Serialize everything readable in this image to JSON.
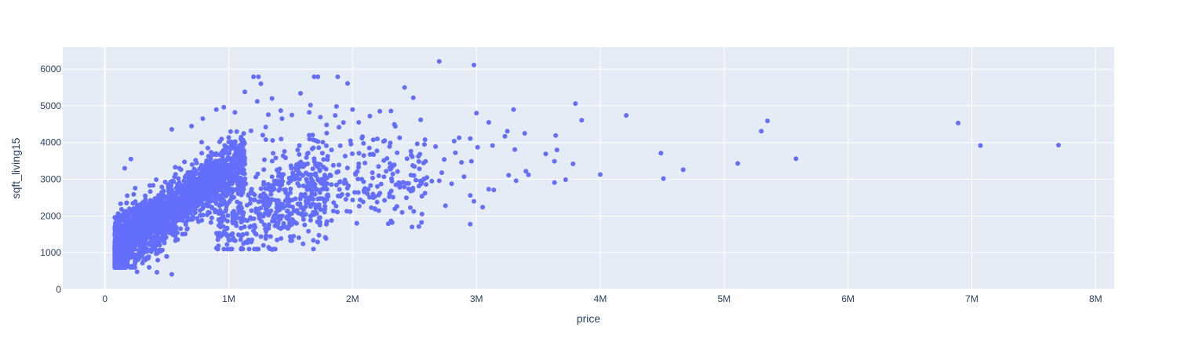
{
  "chart_data": {
    "type": "scatter",
    "title": "",
    "xlabel": "price",
    "ylabel": "sqft_living15",
    "xlim": [
      -340000,
      8150000
    ],
    "ylim": [
      0,
      6600
    ],
    "x_ticks": [
      0,
      1000000,
      2000000,
      3000000,
      4000000,
      5000000,
      6000000,
      7000000,
      8000000
    ],
    "x_tick_labels": [
      "0",
      "1M",
      "2M",
      "3M",
      "4M",
      "5M",
      "6M",
      "7M",
      "8M"
    ],
    "y_ticks": [
      0,
      1000,
      2000,
      3000,
      4000,
      5000,
      6000
    ],
    "y_tick_labels": [
      "0",
      "1000",
      "2000",
      "3000",
      "4000",
      "5000",
      "6000"
    ],
    "grid": true,
    "legend": "none",
    "colors": {
      "marker": "#636efa",
      "plot_bg": "#e5ecf6",
      "grid": "#ffffff",
      "text": "#2a3f5f"
    },
    "series": [
      {
        "points": [
          [
            2700000,
            6210
          ],
          [
            2980000,
            6110
          ],
          [
            1200000,
            5790
          ],
          [
            1240000,
            5790
          ],
          [
            1690000,
            5790
          ],
          [
            1720000,
            5790
          ],
          [
            1880000,
            5790
          ],
          [
            1960000,
            5610
          ],
          [
            1260000,
            5600
          ],
          [
            2420000,
            5500
          ],
          [
            1130000,
            5380
          ],
          [
            1580000,
            5340
          ],
          [
            2490000,
            5220
          ],
          [
            1350000,
            5200
          ],
          [
            1230000,
            5120
          ],
          [
            3800000,
            5060
          ],
          [
            1660000,
            5020
          ],
          [
            1870000,
            4980
          ],
          [
            3300000,
            4900
          ],
          [
            2000000,
            4900
          ],
          [
            1420000,
            4870
          ],
          [
            1650000,
            4820
          ],
          [
            3000000,
            4800
          ],
          [
            4210000,
            4740
          ],
          [
            1320000,
            4760
          ],
          [
            1860000,
            4740
          ],
          [
            2220000,
            4850
          ],
          [
            2310000,
            4860
          ],
          [
            2140000,
            4720
          ],
          [
            3850000,
            4610
          ],
          [
            5350000,
            4590
          ],
          [
            3100000,
            4550
          ],
          [
            6890000,
            4530
          ],
          [
            1790000,
            4480
          ],
          [
            2550000,
            4620
          ],
          [
            540000,
            4360
          ],
          [
            5300000,
            4310
          ],
          [
            3250000,
            4310
          ],
          [
            3390000,
            4250
          ],
          [
            3640000,
            4190
          ],
          [
            3230000,
            4170
          ],
          [
            2200000,
            4100
          ],
          [
            2860000,
            4130
          ],
          [
            2950000,
            4110
          ],
          [
            3010000,
            3870
          ],
          [
            2820000,
            4040
          ],
          [
            2380000,
            4130
          ],
          [
            3130000,
            3920
          ],
          [
            3310000,
            3810
          ],
          [
            3650000,
            3800
          ],
          [
            7070000,
            3920
          ],
          [
            7700000,
            3930
          ],
          [
            4490000,
            3710
          ],
          [
            3560000,
            3690
          ],
          [
            3630000,
            3490
          ],
          [
            3780000,
            3420
          ],
          [
            2960000,
            3490
          ],
          [
            2740000,
            3540
          ],
          [
            5580000,
            3560
          ],
          [
            5110000,
            3430
          ],
          [
            4670000,
            3260
          ],
          [
            3400000,
            3220
          ],
          [
            3420000,
            3120
          ],
          [
            3260000,
            3110
          ],
          [
            4000000,
            3130
          ],
          [
            3720000,
            2990
          ],
          [
            3630000,
            2910
          ],
          [
            3320000,
            2960
          ],
          [
            4510000,
            3020
          ],
          [
            3100000,
            2730
          ],
          [
            3140000,
            2710
          ],
          [
            3050000,
            2240
          ],
          [
            2980000,
            2400
          ],
          [
            2950000,
            2560
          ],
          [
            2950000,
            1780
          ],
          [
            2750000,
            2280
          ],
          [
            2700000,
            2960
          ],
          [
            2600000,
            3050
          ],
          [
            2500000,
            3350
          ],
          [
            2480000,
            1700
          ],
          [
            2320000,
            1820
          ],
          [
            2400000,
            2100
          ],
          [
            2180000,
            2200
          ],
          [
            1980000,
            2120
          ],
          [
            1830000,
            1880
          ],
          [
            1700000,
            2300
          ],
          [
            1580000,
            2500
          ],
          [
            1510000,
            1770
          ],
          [
            1490000,
            2400
          ],
          [
            1400000,
            2150
          ],
          [
            1360000,
            1950
          ],
          [
            1320000,
            1700
          ],
          [
            1260000,
            1440
          ],
          [
            1200000,
            1600
          ],
          [
            1160000,
            1350
          ],
          [
            1120000,
            1250
          ],
          [
            1280000,
            1200
          ],
          [
            1350000,
            1090
          ],
          [
            1500000,
            1330
          ],
          [
            1600000,
            1240
          ],
          [
            540000,
            410
          ],
          [
            420000,
            470
          ],
          [
            260000,
            480
          ],
          [
            110000,
            2060
          ],
          [
            160000,
            3300
          ],
          [
            210000,
            3550
          ],
          [
            700000,
            4450
          ],
          [
            790000,
            4650
          ],
          [
            900000,
            4900
          ],
          [
            960000,
            4960
          ],
          [
            1050000,
            4820
          ],
          [
            1430000,
            4650
          ],
          [
            1510000,
            4750
          ],
          [
            1740000,
            4690
          ],
          [
            1890000,
            4420
          ],
          [
            2050000,
            4550
          ],
          [
            2080000,
            4160
          ],
          [
            2250000,
            4030
          ],
          [
            2360000,
            3720
          ],
          [
            2580000,
            3950
          ],
          [
            2670000,
            3890
          ],
          [
            2440000,
            3560
          ],
          [
            2300000,
            3310
          ],
          [
            2160000,
            3180
          ],
          [
            2050000,
            3420
          ],
          [
            1940000,
            3630
          ],
          [
            1830000,
            3800
          ],
          [
            1760000,
            4010
          ],
          [
            1650000,
            4200
          ],
          [
            1570000,
            3920
          ],
          [
            1450000,
            3760
          ],
          [
            1380000,
            3580
          ],
          [
            1300000,
            4080
          ],
          [
            1180000,
            4320
          ],
          [
            1100000,
            4150
          ],
          [
            1020000,
            4020
          ],
          [
            1700000,
            2760
          ],
          [
            1800000,
            2580
          ],
          [
            1900000,
            2940
          ],
          [
            2100000,
            2750
          ],
          [
            2220000,
            2620
          ],
          [
            2350000,
            2850
          ],
          [
            2470000,
            2680
          ],
          [
            2560000,
            2540
          ],
          [
            2640000,
            2950
          ],
          [
            2720000,
            3180
          ],
          [
            2800000,
            2880
          ],
          [
            2900000,
            3070
          ],
          [
            2880000,
            3460
          ],
          [
            2830000,
            3720
          ]
        ]
      }
    ]
  }
}
